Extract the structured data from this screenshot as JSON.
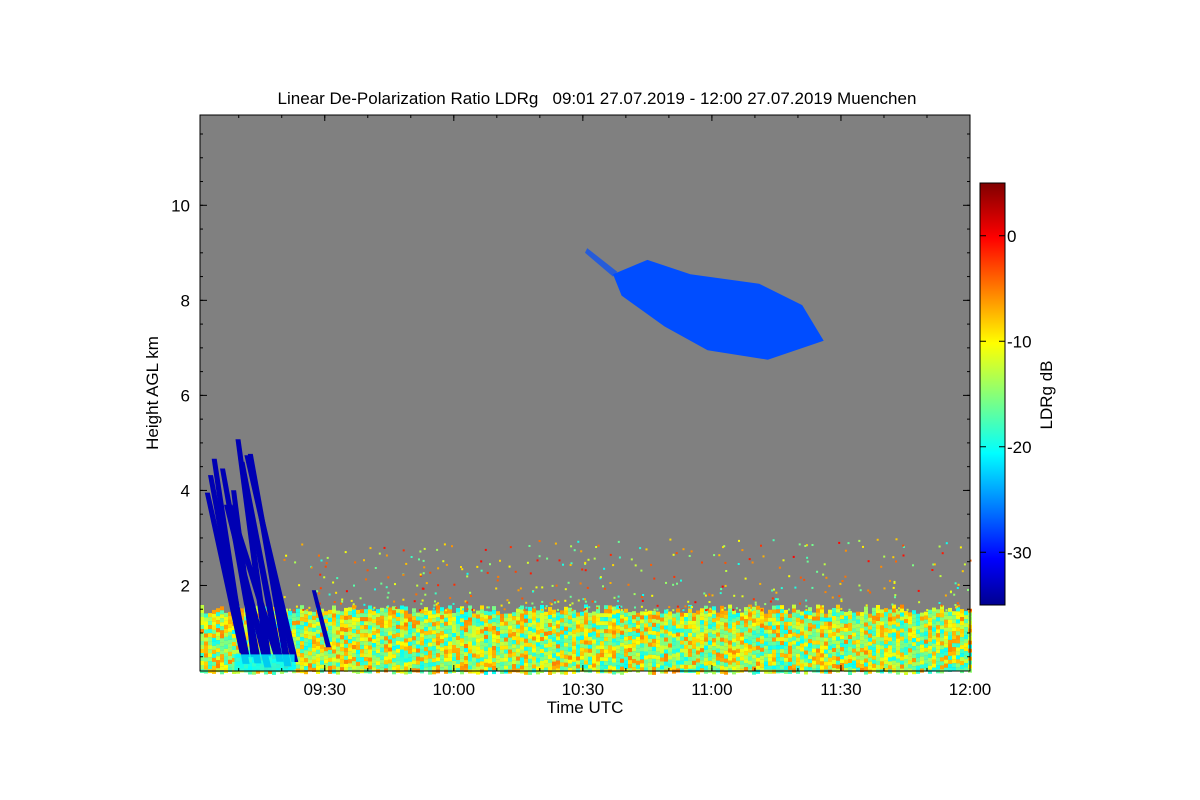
{
  "chart_data": {
    "type": "heatmap",
    "title": "Linear De-Polarization Ratio LDRg   09:01 27.07.2019 - 12:00 27.07.2019 Muenchen",
    "xlabel": "Time UTC",
    "ylabel": "Height AGL km",
    "x_range": [
      "09:01",
      "12:00"
    ],
    "x_ticks": [
      "09:30",
      "10:00",
      "10:30",
      "11:00",
      "11:30",
      "12:00"
    ],
    "y_range_km": [
      0.2,
      11.9
    ],
    "y_ticks": [
      2,
      4,
      6,
      8,
      10
    ],
    "background_color": "#808080",
    "colorbar": {
      "label": "LDRg dB",
      "range_db": [
        -35,
        5
      ],
      "ticks": [
        0,
        -10,
        -20,
        -30
      ],
      "colormap": "jet"
    },
    "features": [
      {
        "name": "boundary layer",
        "time": [
          "09:01",
          "12:00"
        ],
        "height_km": [
          0.2,
          1.5
        ],
        "ldr_db_range": [
          -20,
          -5
        ]
      },
      {
        "name": "sparse signal above boundary layer",
        "time": [
          "09:20",
          "12:00"
        ],
        "height_km": [
          1.5,
          3.0
        ],
        "ldr_db_range": [
          -20,
          0
        ]
      },
      {
        "name": "precipitation fall streaks",
        "time": [
          "09:01",
          "09:23"
        ],
        "height_km": [
          0.2,
          5.1
        ],
        "ldr_db": -33
      },
      {
        "name": "small streak",
        "time": [
          "09:27",
          "09:31"
        ],
        "height_km": [
          0.7,
          1.9
        ],
        "ldr_db": -33
      },
      {
        "name": "cirrus cloud",
        "time": [
          "10:31",
          "11:26"
        ],
        "height_km": [
          6.7,
          9.1
        ],
        "ldr_db": -27
      }
    ]
  }
}
